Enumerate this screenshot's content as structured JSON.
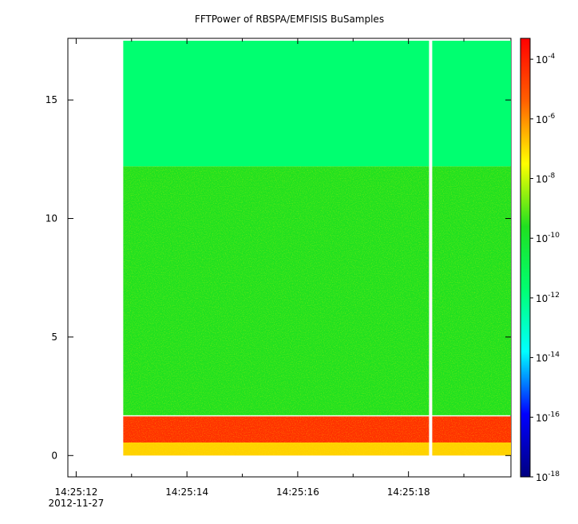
{
  "chart_data": {
    "type": "heatmap",
    "title": "FFTPower of RBSPA/EMFISIS  BuSamples",
    "xlabel": "",
    "ylabel": "",
    "x_ticks": [
      {
        "value": 12,
        "label": "14:25:12"
      },
      {
        "value": 14,
        "label": "14:25:14"
      },
      {
        "value": 16,
        "label": "14:25:16"
      },
      {
        "value": 18,
        "label": "14:25:18"
      }
    ],
    "x_date_label": "2012-11-27",
    "x_minor_ticks": [
      13,
      15,
      17,
      19
    ],
    "xlim": [
      11.85,
      19.85
    ],
    "data_x_range": [
      12.85,
      19.85
    ],
    "gap_x": 18.4,
    "ylim": [
      -0.9,
      17.6
    ],
    "y_ticks": [
      0,
      5,
      10,
      15
    ],
    "y_labels": [
      "0",
      "5",
      "10",
      "15"
    ],
    "data_y_range": [
      0,
      17.5
    ],
    "colorbar": {
      "scale": "log",
      "range_exp": [
        -18,
        -3.3
      ],
      "tick_exps": [
        -4,
        -6,
        -8,
        -10,
        -12,
        -14,
        -16,
        -18
      ],
      "tick_base": "10",
      "colormap": [
        "#000080",
        "#0000ff",
        "#00ffff",
        "#00ff70",
        "#20e020",
        "#ffff00",
        "#ff6000",
        "#ff0000"
      ]
    },
    "regions": [
      {
        "y_from": 12.2,
        "y_to": 17.5,
        "log_power": -12.5,
        "color": "#00ff70"
      },
      {
        "y_from": 1.7,
        "y_to": 12.2,
        "log_power": -10,
        "color": "#20e020"
      },
      {
        "y_from": 0.55,
        "y_to": 1.65,
        "log_power": -6,
        "color": "#ff3000"
      },
      {
        "y_from": 0,
        "y_to": 0.55,
        "log_power": -8,
        "color": "#ffd000"
      }
    ]
  }
}
